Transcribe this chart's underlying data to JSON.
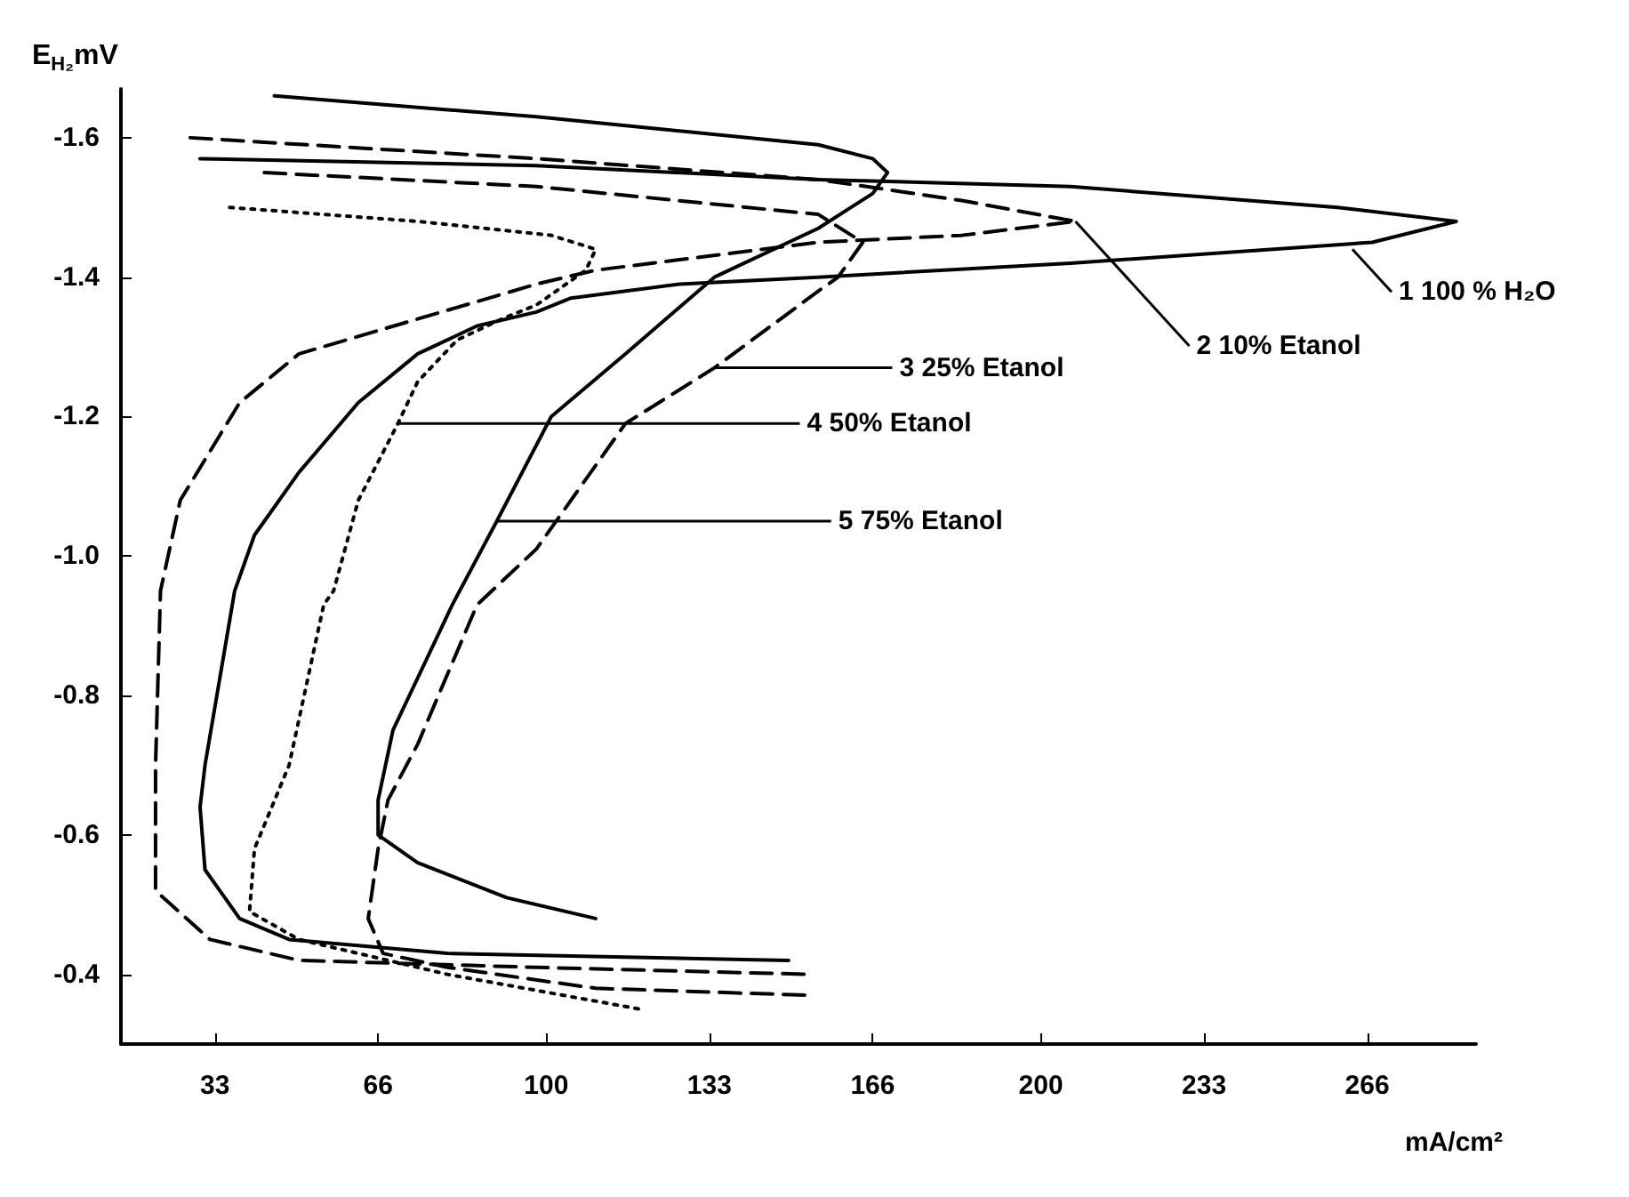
{
  "chart_data": {
    "type": "line",
    "xlabel": "mA/cm²",
    "ylabel": "E$_{H₂}$mV",
    "xlim": [
      14,
      288
    ],
    "xticks": [
      33,
      66,
      100,
      133,
      166,
      200,
      233,
      266
    ],
    "ylim": [
      -0.3,
      -1.67
    ],
    "yticks": [
      -1.6,
      -1.4,
      -1.2,
      {
        "value": -1.0,
        "label": "-1.0"
      },
      -0.8,
      -0.6,
      -0.4
    ],
    "grid": false,
    "marker": "none",
    "series": [
      {
        "color": "#000000",
        "line_style": "solid",
        "x": [
          30,
          98,
          155,
          206,
          260,
          284,
          267,
          206,
          155,
          127,
          105,
          98,
          86,
          74,
          62,
          50,
          41,
          37,
          31,
          30,
          31,
          38,
          48,
          80,
          149
        ],
        "values": [
          -1.57,
          -1.56,
          -1.54,
          -1.53,
          -1.5,
          -1.48,
          -1.45,
          -1.42,
          -1.4,
          -1.39,
          -1.37,
          -1.35,
          -1.33,
          -1.29,
          -1.22,
          -1.12,
          -1.03,
          -0.95,
          -0.7,
          -0.64,
          -0.55,
          -0.48,
          -0.45,
          -0.43,
          -0.42
        ]
      },
      {
        "color": "#000000",
        "line_style": "dashed",
        "x": [
          28,
          98,
          155,
          184,
          207,
          184,
          155,
          110,
          98,
          74,
          50,
          38,
          26,
          22,
          21,
          21,
          32,
          50,
          98,
          153
        ],
        "values": [
          -1.6,
          -1.57,
          -1.54,
          -1.51,
          -1.48,
          -1.46,
          -1.45,
          -1.41,
          -1.39,
          -1.34,
          -1.29,
          -1.22,
          -1.08,
          -0.95,
          -0.7,
          -0.52,
          -0.45,
          -0.42,
          -0.41,
          -0.4
        ]
      },
      {
        "color": "#000000",
        "line_style": "dashed",
        "x": [
          43,
          98,
          155,
          164,
          159,
          155,
          134,
          116,
          98,
          86,
          74,
          68,
          66,
          64,
          67,
          80,
          110,
          153
        ],
        "values": [
          -1.55,
          -1.53,
          -1.49,
          -1.45,
          -1.4,
          -1.38,
          -1.27,
          -1.19,
          -1.01,
          -0.93,
          -0.73,
          -0.65,
          -0.58,
          -0.48,
          -0.43,
          -0.41,
          -0.38,
          -0.37
        ]
      },
      {
        "color": "#000000",
        "line_style": "dotted",
        "x": [
          36,
          74,
          101,
          110,
          108,
          98,
          91,
          82,
          74,
          70,
          62,
          57,
          55,
          48,
          41,
          40,
          50,
          80,
          119
        ],
        "values": [
          -1.5,
          -1.48,
          -1.46,
          -1.44,
          -1.41,
          -1.36,
          -1.34,
          -1.31,
          -1.25,
          -1.19,
          -1.08,
          -0.95,
          -0.93,
          -0.7,
          -0.58,
          -0.49,
          -0.45,
          -0.4,
          -0.35
        ]
      },
      {
        "color": "#000000",
        "line_style": "solid",
        "x": [
          45,
          98,
          155,
          166,
          169,
          166,
          155,
          134,
          116,
          101,
          90,
          81,
          69,
          66,
          66,
          74,
          92,
          110
        ],
        "values": [
          -1.66,
          -1.63,
          -1.59,
          -1.57,
          -1.55,
          -1.52,
          -1.47,
          -1.4,
          -1.29,
          -1.2,
          -1.05,
          -0.93,
          -0.75,
          -0.65,
          -0.6,
          -0.56,
          -0.51,
          -0.48
        ]
      }
    ],
    "annotations": [
      {
        "text": "1 100 % H₂O",
        "x": 263,
        "y": -1.44
      },
      {
        "text": "2 10% Etanol",
        "x": 207,
        "y": -1.48
      },
      {
        "text": "3 25% Etanol",
        "x": 134,
        "y": -1.27
      },
      {
        "text": "4 50% Etanol",
        "x": 70,
        "y": -1.19
      },
      {
        "text": "5 75% Etanol",
        "x": 90,
        "y": -1.05
      }
    ]
  }
}
